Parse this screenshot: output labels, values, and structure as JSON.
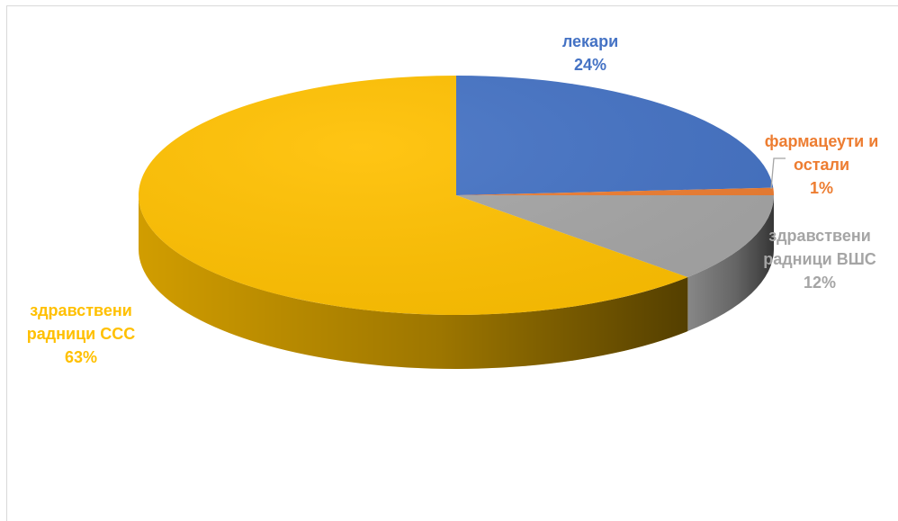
{
  "chart_data": {
    "type": "pie",
    "title": "",
    "slices": [
      {
        "label_lines": [
          "лекари"
        ],
        "percent_label": "24%",
        "value": 24,
        "color": "#4472c4",
        "label_color": "#4472c4"
      },
      {
        "label_lines": [
          "фармацеути и",
          "остали"
        ],
        "percent_label": "1%",
        "value": 1,
        "color": "#ed7d31",
        "label_color": "#ed7d31"
      },
      {
        "label_lines": [
          "здравствени",
          "радници ВШС"
        ],
        "percent_label": "12%",
        "value": 12,
        "color": "#a5a5a5",
        "label_color": "#a5a5a5"
      },
      {
        "label_lines": [
          "здравствени",
          "радници ССС"
        ],
        "percent_label": "63%",
        "value": 63,
        "color": "#ffc000",
        "label_color": "#ffc000"
      }
    ],
    "start_angle_deg": 0,
    "direction": "clockwise",
    "style": "3d-pie",
    "legend": "none",
    "data_labels": "outside, category name and percentage"
  }
}
